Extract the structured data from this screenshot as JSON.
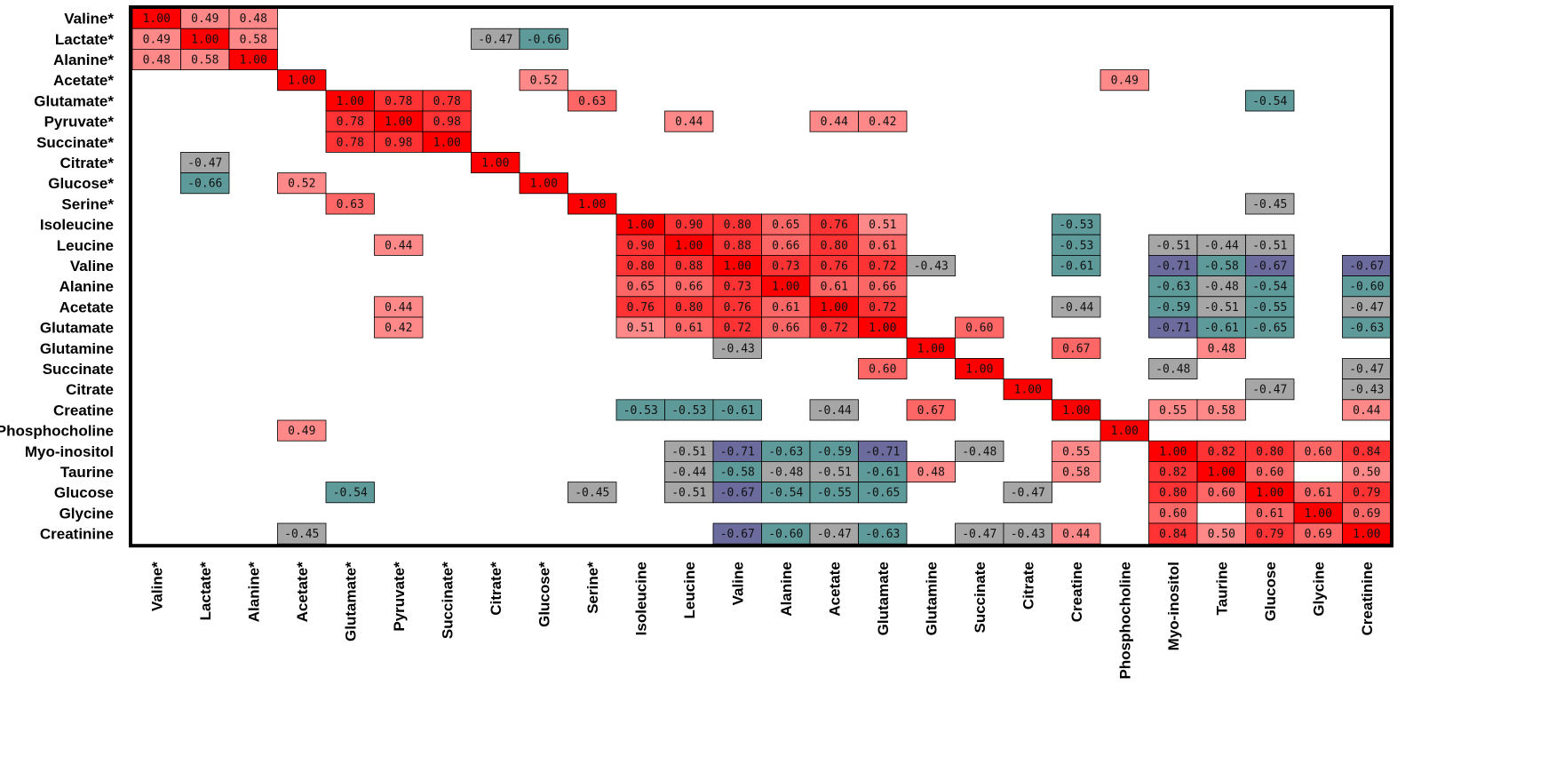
{
  "chart_data": {
    "type": "heatmap",
    "title": "",
    "xlabel": "",
    "ylabel": "",
    "labels": [
      "Valine*",
      "Lactate*",
      "Alanine*",
      "Acetate*",
      "Glutamate*",
      "Pyruvate*",
      "Succinate*",
      "Citrate*",
      "Glucose*",
      "Serine*",
      "Isoleucine",
      "Leucine",
      "Valine",
      "Alanine",
      "Acetate",
      "Glutamate",
      "Glutamine",
      "Succinate",
      "Citrate",
      "Creatine",
      "Phosphocholine",
      "Myo-inositol",
      "Taurine",
      "Glucose",
      "Glycine",
      "Creatinine"
    ],
    "colors": {
      "diag": "#ff0000",
      "strong_pos": "#ff3333",
      "mid_pos": "#ff6666",
      "weak_pos": "#ff8888",
      "neg_grey": "#a6a6a6",
      "neg_teal": "#5f9a9a",
      "neg_purple": "#6b6b9e"
    },
    "cells": [
      {
        "r": 0,
        "c": 0,
        "v": "1.00"
      },
      {
        "r": 0,
        "c": 1,
        "v": "0.49"
      },
      {
        "r": 0,
        "c": 2,
        "v": "0.48"
      },
      {
        "r": 1,
        "c": 0,
        "v": "0.49"
      },
      {
        "r": 1,
        "c": 1,
        "v": "1.00"
      },
      {
        "r": 1,
        "c": 2,
        "v": "0.58"
      },
      {
        "r": 1,
        "c": 7,
        "v": "-0.47"
      },
      {
        "r": 1,
        "c": 8,
        "v": "-0.66"
      },
      {
        "r": 2,
        "c": 0,
        "v": "0.48"
      },
      {
        "r": 2,
        "c": 1,
        "v": "0.58"
      },
      {
        "r": 2,
        "c": 2,
        "v": "1.00"
      },
      {
        "r": 3,
        "c": 3,
        "v": "1.00"
      },
      {
        "r": 3,
        "c": 8,
        "v": "0.52"
      },
      {
        "r": 3,
        "c": 20,
        "v": "0.49"
      },
      {
        "r": 4,
        "c": 4,
        "v": "1.00"
      },
      {
        "r": 4,
        "c": 5,
        "v": "0.78"
      },
      {
        "r": 4,
        "c": 6,
        "v": "0.78"
      },
      {
        "r": 4,
        "c": 9,
        "v": "0.63"
      },
      {
        "r": 4,
        "c": 23,
        "v": "-0.54"
      },
      {
        "r": 5,
        "c": 4,
        "v": "0.78"
      },
      {
        "r": 5,
        "c": 5,
        "v": "1.00"
      },
      {
        "r": 5,
        "c": 6,
        "v": "0.98"
      },
      {
        "r": 5,
        "c": 11,
        "v": "0.44"
      },
      {
        "r": 5,
        "c": 14,
        "v": "0.44"
      },
      {
        "r": 5,
        "c": 15,
        "v": "0.42"
      },
      {
        "r": 6,
        "c": 4,
        "v": "0.78"
      },
      {
        "r": 6,
        "c": 5,
        "v": "0.98"
      },
      {
        "r": 6,
        "c": 6,
        "v": "1.00"
      },
      {
        "r": 7,
        "c": 1,
        "v": "-0.47"
      },
      {
        "r": 7,
        "c": 7,
        "v": "1.00"
      },
      {
        "r": 8,
        "c": 1,
        "v": "-0.66"
      },
      {
        "r": 8,
        "c": 3,
        "v": "0.52"
      },
      {
        "r": 8,
        "c": 8,
        "v": "1.00"
      },
      {
        "r": 9,
        "c": 4,
        "v": "0.63"
      },
      {
        "r": 9,
        "c": 9,
        "v": "1.00"
      },
      {
        "r": 9,
        "c": 23,
        "v": "-0.45"
      },
      {
        "r": 10,
        "c": 10,
        "v": "1.00"
      },
      {
        "r": 10,
        "c": 11,
        "v": "0.90"
      },
      {
        "r": 10,
        "c": 12,
        "v": "0.80"
      },
      {
        "r": 10,
        "c": 13,
        "v": "0.65"
      },
      {
        "r": 10,
        "c": 14,
        "v": "0.76"
      },
      {
        "r": 10,
        "c": 15,
        "v": "0.51"
      },
      {
        "r": 10,
        "c": 19,
        "v": "-0.53"
      },
      {
        "r": 11,
        "c": 5,
        "v": "0.44"
      },
      {
        "r": 11,
        "c": 10,
        "v": "0.90"
      },
      {
        "r": 11,
        "c": 11,
        "v": "1.00"
      },
      {
        "r": 11,
        "c": 12,
        "v": "0.88"
      },
      {
        "r": 11,
        "c": 13,
        "v": "0.66"
      },
      {
        "r": 11,
        "c": 14,
        "v": "0.80"
      },
      {
        "r": 11,
        "c": 15,
        "v": "0.61"
      },
      {
        "r": 11,
        "c": 19,
        "v": "-0.53"
      },
      {
        "r": 11,
        "c": 21,
        "v": "-0.51"
      },
      {
        "r": 11,
        "c": 22,
        "v": "-0.44"
      },
      {
        "r": 11,
        "c": 23,
        "v": "-0.51"
      },
      {
        "r": 12,
        "c": 10,
        "v": "0.80"
      },
      {
        "r": 12,
        "c": 11,
        "v": "0.88"
      },
      {
        "r": 12,
        "c": 12,
        "v": "1.00"
      },
      {
        "r": 12,
        "c": 13,
        "v": "0.73"
      },
      {
        "r": 12,
        "c": 14,
        "v": "0.76"
      },
      {
        "r": 12,
        "c": 15,
        "v": "0.72"
      },
      {
        "r": 12,
        "c": 16,
        "v": "-0.43"
      },
      {
        "r": 12,
        "c": 19,
        "v": "-0.61"
      },
      {
        "r": 12,
        "c": 21,
        "v": "-0.71"
      },
      {
        "r": 12,
        "c": 22,
        "v": "-0.58"
      },
      {
        "r": 12,
        "c": 23,
        "v": "-0.67"
      },
      {
        "r": 12,
        "c": 25,
        "v": "-0.67"
      },
      {
        "r": 13,
        "c": 10,
        "v": "0.65"
      },
      {
        "r": 13,
        "c": 11,
        "v": "0.66"
      },
      {
        "r": 13,
        "c": 12,
        "v": "0.73"
      },
      {
        "r": 13,
        "c": 13,
        "v": "1.00"
      },
      {
        "r": 13,
        "c": 14,
        "v": "0.61"
      },
      {
        "r": 13,
        "c": 15,
        "v": "0.66"
      },
      {
        "r": 13,
        "c": 21,
        "v": "-0.63"
      },
      {
        "r": 13,
        "c": 22,
        "v": "-0.48"
      },
      {
        "r": 13,
        "c": 23,
        "v": "-0.54"
      },
      {
        "r": 13,
        "c": 25,
        "v": "-0.60"
      },
      {
        "r": 14,
        "c": 5,
        "v": "0.44"
      },
      {
        "r": 14,
        "c": 10,
        "v": "0.76"
      },
      {
        "r": 14,
        "c": 11,
        "v": "0.80"
      },
      {
        "r": 14,
        "c": 12,
        "v": "0.76"
      },
      {
        "r": 14,
        "c": 13,
        "v": "0.61"
      },
      {
        "r": 14,
        "c": 14,
        "v": "1.00"
      },
      {
        "r": 14,
        "c": 15,
        "v": "0.72"
      },
      {
        "r": 14,
        "c": 19,
        "v": "-0.44"
      },
      {
        "r": 14,
        "c": 21,
        "v": "-0.59"
      },
      {
        "r": 14,
        "c": 22,
        "v": "-0.51"
      },
      {
        "r": 14,
        "c": 23,
        "v": "-0.55"
      },
      {
        "r": 14,
        "c": 25,
        "v": "-0.47"
      },
      {
        "r": 15,
        "c": 5,
        "v": "0.42"
      },
      {
        "r": 15,
        "c": 10,
        "v": "0.51"
      },
      {
        "r": 15,
        "c": 11,
        "v": "0.61"
      },
      {
        "r": 15,
        "c": 12,
        "v": "0.72"
      },
      {
        "r": 15,
        "c": 13,
        "v": "0.66"
      },
      {
        "r": 15,
        "c": 14,
        "v": "0.72"
      },
      {
        "r": 15,
        "c": 15,
        "v": "1.00"
      },
      {
        "r": 15,
        "c": 17,
        "v": "0.60"
      },
      {
        "r": 15,
        "c": 21,
        "v": "-0.71"
      },
      {
        "r": 15,
        "c": 22,
        "v": "-0.61"
      },
      {
        "r": 15,
        "c": 23,
        "v": "-0.65"
      },
      {
        "r": 15,
        "c": 25,
        "v": "-0.63"
      },
      {
        "r": 16,
        "c": 12,
        "v": "-0.43"
      },
      {
        "r": 16,
        "c": 16,
        "v": "1.00"
      },
      {
        "r": 16,
        "c": 19,
        "v": "0.67"
      },
      {
        "r": 16,
        "c": 22,
        "v": "0.48"
      },
      {
        "r": 17,
        "c": 15,
        "v": "0.60"
      },
      {
        "r": 17,
        "c": 17,
        "v": "1.00"
      },
      {
        "r": 17,
        "c": 21,
        "v": "-0.48"
      },
      {
        "r": 17,
        "c": 25,
        "v": "-0.47"
      },
      {
        "r": 18,
        "c": 18,
        "v": "1.00"
      },
      {
        "r": 18,
        "c": 23,
        "v": "-0.47"
      },
      {
        "r": 18,
        "c": 25,
        "v": "-0.43"
      },
      {
        "r": 19,
        "c": 10,
        "v": "-0.53"
      },
      {
        "r": 19,
        "c": 11,
        "v": "-0.53"
      },
      {
        "r": 19,
        "c": 12,
        "v": "-0.61"
      },
      {
        "r": 19,
        "c": 14,
        "v": "-0.44"
      },
      {
        "r": 19,
        "c": 16,
        "v": "0.67"
      },
      {
        "r": 19,
        "c": 19,
        "v": "1.00"
      },
      {
        "r": 19,
        "c": 21,
        "v": "0.55"
      },
      {
        "r": 19,
        "c": 22,
        "v": "0.58"
      },
      {
        "r": 19,
        "c": 25,
        "v": "0.44"
      },
      {
        "r": 20,
        "c": 3,
        "v": "0.49"
      },
      {
        "r": 20,
        "c": 20,
        "v": "1.00"
      },
      {
        "r": 21,
        "c": 11,
        "v": "-0.51"
      },
      {
        "r": 21,
        "c": 12,
        "v": "-0.71"
      },
      {
        "r": 21,
        "c": 13,
        "v": "-0.63"
      },
      {
        "r": 21,
        "c": 14,
        "v": "-0.59"
      },
      {
        "r": 21,
        "c": 15,
        "v": "-0.71"
      },
      {
        "r": 21,
        "c": 17,
        "v": "-0.48"
      },
      {
        "r": 21,
        "c": 19,
        "v": "0.55"
      },
      {
        "r": 21,
        "c": 21,
        "v": "1.00"
      },
      {
        "r": 21,
        "c": 22,
        "v": "0.82"
      },
      {
        "r": 21,
        "c": 23,
        "v": "0.80"
      },
      {
        "r": 21,
        "c": 24,
        "v": "0.60"
      },
      {
        "r": 21,
        "c": 25,
        "v": "0.84"
      },
      {
        "r": 22,
        "c": 11,
        "v": "-0.44"
      },
      {
        "r": 22,
        "c": 12,
        "v": "-0.58"
      },
      {
        "r": 22,
        "c": 13,
        "v": "-0.48"
      },
      {
        "r": 22,
        "c": 14,
        "v": "-0.51"
      },
      {
        "r": 22,
        "c": 15,
        "v": "-0.61"
      },
      {
        "r": 22,
        "c": 16,
        "v": "0.48"
      },
      {
        "r": 22,
        "c": 19,
        "v": "0.58"
      },
      {
        "r": 22,
        "c": 21,
        "v": "0.82"
      },
      {
        "r": 22,
        "c": 22,
        "v": "1.00"
      },
      {
        "r": 22,
        "c": 23,
        "v": "0.60"
      },
      {
        "r": 22,
        "c": 25,
        "v": "0.50"
      },
      {
        "r": 23,
        "c": 4,
        "v": "-0.54"
      },
      {
        "r": 23,
        "c": 9,
        "v": "-0.45"
      },
      {
        "r": 23,
        "c": 11,
        "v": "-0.51"
      },
      {
        "r": 23,
        "c": 12,
        "v": "-0.67"
      },
      {
        "r": 23,
        "c": 13,
        "v": "-0.54"
      },
      {
        "r": 23,
        "c": 14,
        "v": "-0.55"
      },
      {
        "r": 23,
        "c": 15,
        "v": "-0.65"
      },
      {
        "r": 23,
        "c": 18,
        "v": "-0.47"
      },
      {
        "r": 23,
        "c": 21,
        "v": "0.80"
      },
      {
        "r": 23,
        "c": 22,
        "v": "0.60"
      },
      {
        "r": 23,
        "c": 23,
        "v": "1.00"
      },
      {
        "r": 23,
        "c": 24,
        "v": "0.61"
      },
      {
        "r": 23,
        "c": 25,
        "v": "0.79"
      },
      {
        "r": 24,
        "c": 21,
        "v": "0.60"
      },
      {
        "r": 24,
        "c": 23,
        "v": "0.61"
      },
      {
        "r": 24,
        "c": 24,
        "v": "1.00"
      },
      {
        "r": 24,
        "c": 25,
        "v": "0.69"
      },
      {
        "r": 25,
        "c": 3,
        "v": "-0.45"
      },
      {
        "r": 25,
        "c": 12,
        "v": "-0.67"
      },
      {
        "r": 25,
        "c": 13,
        "v": "-0.60"
      },
      {
        "r": 25,
        "c": 14,
        "v": "-0.47"
      },
      {
        "r": 25,
        "c": 15,
        "v": "-0.63"
      },
      {
        "r": 25,
        "c": 17,
        "v": "-0.47"
      },
      {
        "r": 25,
        "c": 18,
        "v": "-0.43"
      },
      {
        "r": 25,
        "c": 19,
        "v": "0.44"
      },
      {
        "r": 25,
        "c": 21,
        "v": "0.84"
      },
      {
        "r": 25,
        "c": 22,
        "v": "0.50"
      },
      {
        "r": 25,
        "c": 23,
        "v": "0.79"
      },
      {
        "r": 25,
        "c": 24,
        "v": "0.69"
      },
      {
        "r": 25,
        "c": 25,
        "v": "1.00"
      }
    ]
  }
}
